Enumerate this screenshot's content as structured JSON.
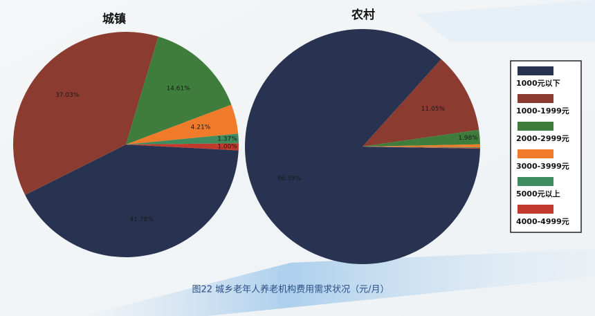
{
  "chart_data": {
    "type": "pie",
    "caption": "图22 城乡老年人养老机构费用需求状况（元/月）",
    "categories": [
      "1000元以下",
      "1000-1999元",
      "2000-2999元",
      "3000-3999元",
      "5000元以上",
      "4000-4999元"
    ],
    "colors": [
      "#283352",
      "#8b3b30",
      "#3f7d3c",
      "#f07b2a",
      "#3f8c5e",
      "#c23a2e"
    ],
    "legend": "right",
    "series": [
      {
        "name": "城镇",
        "values": [
          41.78,
          37.03,
          14.61,
          4.21,
          1.37,
          1.0
        ],
        "value_labels": [
          "41.78%",
          "37.03%",
          "14.61%",
          "4.21%",
          "1.37%",
          "1.00%"
        ]
      },
      {
        "name": "农村",
        "values": [
          86.39,
          11.05,
          1.98,
          0.4,
          0.1,
          0.08
        ],
        "value_labels": [
          "86.39%",
          "11.05%",
          "1.98%",
          null,
          null,
          null
        ]
      }
    ]
  }
}
